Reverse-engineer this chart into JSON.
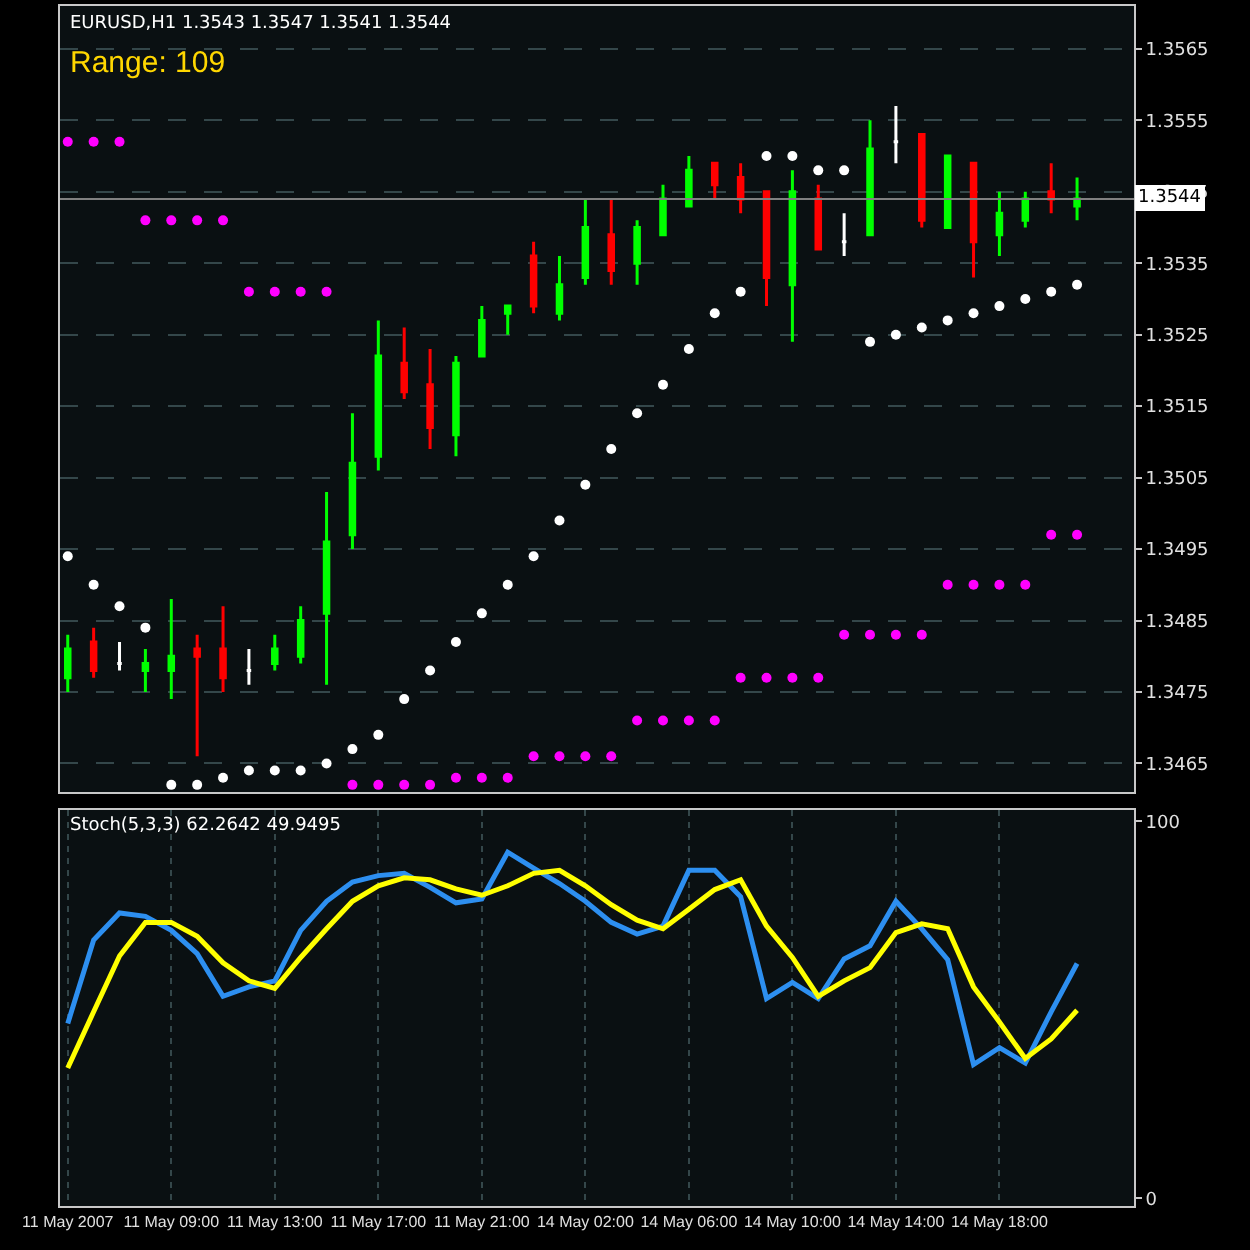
{
  "chart_data": [
    {
      "type": "candlestick",
      "title": "EURUSD,H1 1.3543 1.3547 1.3541 1.3544",
      "annotations": [
        "Range: 109"
      ],
      "categories": [
        null,
        null,
        null,
        null,
        null,
        null,
        null,
        null,
        null,
        null,
        null,
        null,
        null,
        null,
        null,
        null,
        null,
        null,
        null,
        null,
        null,
        null,
        null,
        null,
        null,
        null,
        null,
        null,
        null,
        null,
        null,
        null,
        null,
        null,
        null,
        null,
        null,
        null,
        null,
        null
      ],
      "ohlc": [
        [
          1.3477,
          1.3483,
          1.3475,
          1.3481
        ],
        [
          1.3482,
          1.3484,
          1.3477,
          1.3478
        ],
        [
          1.3479,
          1.3482,
          1.3478,
          1.3479
        ],
        [
          1.3478,
          1.3481,
          1.3475,
          1.3479
        ],
        [
          1.3478,
          1.3488,
          1.3474,
          1.348
        ],
        [
          1.3481,
          1.3483,
          1.3466,
          1.348
        ],
        [
          1.3481,
          1.3487,
          1.3475,
          1.3477
        ],
        [
          1.3478,
          1.3481,
          1.3476,
          1.3478
        ],
        [
          1.3479,
          1.3483,
          1.3478,
          1.3481
        ],
        [
          1.348,
          1.3487,
          1.3479,
          1.3485
        ],
        [
          1.3486,
          1.3503,
          1.3476,
          1.3496
        ],
        [
          1.3497,
          1.3514,
          1.3495,
          1.3507
        ],
        [
          1.3508,
          1.3527,
          1.3506,
          1.3522
        ],
        [
          1.3521,
          1.3526,
          1.3516,
          1.3517
        ],
        [
          1.3518,
          1.3523,
          1.3509,
          1.3512
        ],
        [
          1.3511,
          1.3522,
          1.3508,
          1.3521
        ],
        [
          1.3522,
          1.3529,
          1.3522,
          1.3527
        ],
        [
          1.3528,
          1.3529,
          1.3525,
          1.3529
        ],
        [
          1.3536,
          1.3538,
          1.3528,
          1.3529
        ],
        [
          1.3528,
          1.3536,
          1.3527,
          1.3532
        ],
        [
          1.3533,
          1.3544,
          1.3532,
          1.354
        ],
        [
          1.3539,
          1.3544,
          1.3532,
          1.3534
        ],
        [
          1.3535,
          1.3541,
          1.3532,
          1.354
        ],
        [
          1.3539,
          1.3546,
          1.3539,
          1.3544
        ],
        [
          1.3543,
          1.355,
          1.3543,
          1.3548
        ],
        [
          1.3549,
          1.3549,
          1.3544,
          1.3546
        ],
        [
          1.3547,
          1.3549,
          1.3542,
          1.3544
        ],
        [
          1.3545,
          1.3545,
          1.3529,
          1.3533
        ],
        [
          1.3532,
          1.3548,
          1.3524,
          1.3545
        ],
        [
          1.3544,
          1.3546,
          1.3537,
          1.3537
        ],
        [
          1.3538,
          1.3542,
          1.3536,
          1.3538
        ],
        [
          1.3539,
          1.3555,
          1.3539,
          1.3551
        ],
        [
          1.3552,
          1.3557,
          1.3549,
          1.3552
        ],
        [
          1.3553,
          1.3553,
          1.354,
          1.3541
        ],
        [
          1.354,
          1.355,
          1.354,
          1.355
        ],
        [
          1.3549,
          1.3549,
          1.3533,
          1.3538
        ],
        [
          1.3539,
          1.3545,
          1.3536,
          1.3542
        ],
        [
          1.3541,
          1.3545,
          1.354,
          1.3544
        ],
        [
          1.3545,
          1.3549,
          1.3542,
          1.3544
        ],
        [
          1.3543,
          1.3547,
          1.3541,
          1.3544
        ]
      ],
      "colors": [
        "#00ff00",
        "#ff0000",
        "#ffffff",
        "#00ff00",
        "#00ff00",
        "#ff0000",
        "#ff0000",
        "#ffffff",
        "#00ff00",
        "#00ff00",
        "#00ff00",
        "#00ff00",
        "#00ff00",
        "#ff0000",
        "#ff0000",
        "#00ff00",
        "#00ff00",
        "#00ff00",
        "#ff0000",
        "#00ff00",
        "#00ff00",
        "#ff0000",
        "#00ff00",
        "#00ff00",
        "#00ff00",
        "#ff0000",
        "#ff0000",
        "#ff0000",
        "#00ff00",
        "#ff0000",
        "#ffffff",
        "#00ff00",
        "#ffffff",
        "#ff0000",
        "#00ff00",
        "#ff0000",
        "#00ff00",
        "#00ff00",
        "#ff0000",
        "#00ff00"
      ],
      "series": [
        {
          "type": "scatter",
          "color": "#ffffff",
          "values": [
            1.3494,
            1.349,
            1.3487,
            1.3484,
            1.3462,
            1.3462,
            1.3463,
            1.3464,
            1.3464,
            1.3464,
            1.3465,
            1.3467,
            1.3469,
            1.3474,
            1.3478,
            1.3482,
            1.3486,
            1.349,
            1.3494,
            1.3499,
            1.3504,
            1.3509,
            1.3514,
            1.3518,
            1.3523,
            1.3528,
            1.3531,
            1.355,
            1.355,
            1.3548,
            1.3548,
            1.3524,
            1.3525,
            1.3526,
            1.3527,
            1.3528,
            1.3529,
            1.353,
            1.3531,
            1.3532
          ]
        },
        {
          "type": "scatter",
          "color": "#ff00ff",
          "values": [
            1.3552,
            1.3552,
            1.3552,
            1.3541,
            1.3541,
            1.3541,
            1.3541,
            1.3531,
            1.3531,
            1.3531,
            1.3531,
            1.3462,
            1.3462,
            1.3462,
            1.3462,
            1.3463,
            1.3463,
            1.3463,
            1.3466,
            1.3466,
            1.3466,
            1.3466,
            1.3471,
            1.3471,
            1.3471,
            1.3471,
            1.3477,
            1.3477,
            1.3477,
            1.3477,
            1.3483,
            1.3483,
            1.3483,
            1.3483,
            1.349,
            1.349,
            1.349,
            1.349,
            1.3497,
            1.3497
          ]
        }
      ],
      "marker": "circle",
      "ylim": [
        1.3461,
        1.3571
      ],
      "yticks": [
        1.3465,
        1.3475,
        1.3485,
        1.3495,
        1.3505,
        1.3515,
        1.3525,
        1.3535,
        1.3545,
        1.3555,
        1.3565
      ],
      "ref_lines": [
        {
          "axis": "y",
          "value": 1.3544,
          "label": "1.3544",
          "color": "#808080"
        }
      ],
      "grid": true,
      "tick_labels": "y"
    },
    {
      "type": "line",
      "title": "Stoch(5,3,3) 62.2642 49.9495",
      "categories": [
        "11 May 2007",
        null,
        null,
        null,
        "11 May 09:00",
        null,
        null,
        null,
        "11 May 13:00",
        null,
        null,
        null,
        "11 May 17:00",
        null,
        null,
        null,
        "11 May 21:00",
        null,
        null,
        null,
        "14 May 02:00",
        null,
        null,
        null,
        "14 May 06:00",
        null,
        null,
        null,
        "14 May 10:00",
        null,
        null,
        null,
        "14 May 14:00",
        null,
        null,
        null,
        "14 May 18:00",
        null,
        null,
        null
      ],
      "series": [
        {
          "color": "#2d8ff0",
          "values": [
            46.4,
            68.5,
            75.7,
            74.8,
            71.1,
            64.9,
            53.6,
            56.1,
            57.7,
            71.1,
            78.8,
            83.9,
            85.6,
            86.2,
            82.5,
            78.4,
            79.4,
            91.8,
            87.6,
            83.5,
            78.8,
            73.2,
            70.1,
            72.2,
            87,
            87,
            80,
            53,
            57.3,
            53,
            63.5,
            67,
            78.8,
            71.5,
            63.3,
            35.5,
            40,
            35.9,
            49.5,
            62.3
          ]
        },
        {
          "color": "#ffff00",
          "values": [
            34.6,
            49.5,
            64.3,
            73.2,
            73.2,
            69.5,
            62.5,
            57.7,
            55.7,
            63.9,
            71.5,
            78.8,
            82.9,
            85,
            84.5,
            82.1,
            80.4,
            82.9,
            86.2,
            87,
            82.9,
            77.9,
            73.8,
            71.5,
            76.7,
            81.9,
            84.5,
            72.2,
            63.9,
            53.6,
            57.7,
            61.2,
            70.5,
            72.8,
            71.5,
            56.1,
            46.8,
            37.1,
            42.3,
            49.9
          ]
        }
      ],
      "ylim": [
        -2,
        103
      ],
      "yticks": [
        0,
        100
      ],
      "grid": "x"
    }
  ]
}
